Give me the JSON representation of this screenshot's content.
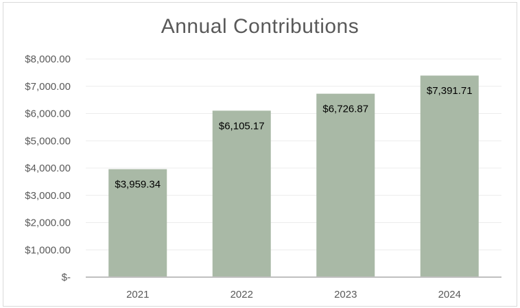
{
  "chart_data": {
    "type": "bar",
    "title": "Annual Contributions",
    "xlabel": "",
    "ylabel": "",
    "categories": [
      "2021",
      "2022",
      "2023",
      "2024"
    ],
    "values": [
      3959.34,
      6105.17,
      6726.87,
      7391.71
    ],
    "data_labels": [
      "$3,959.34",
      "$6,105.17",
      "$6,726.87",
      "$7,391.71"
    ],
    "ylim": [
      0,
      8000
    ],
    "y_ticks": [
      0,
      1000,
      2000,
      3000,
      4000,
      5000,
      6000,
      7000,
      8000
    ],
    "y_tick_labels": [
      "$-",
      "$1,000.00",
      "$2,000.00",
      "$3,000.00",
      "$4,000.00",
      "$5,000.00",
      "$6,000.00",
      "$7,000.00",
      "$8,000.00"
    ],
    "grid": true,
    "legend": "none",
    "bar_color": "#a9b9a6",
    "grid_color": "#ececec",
    "axis_color": "#bfbfbf"
  }
}
